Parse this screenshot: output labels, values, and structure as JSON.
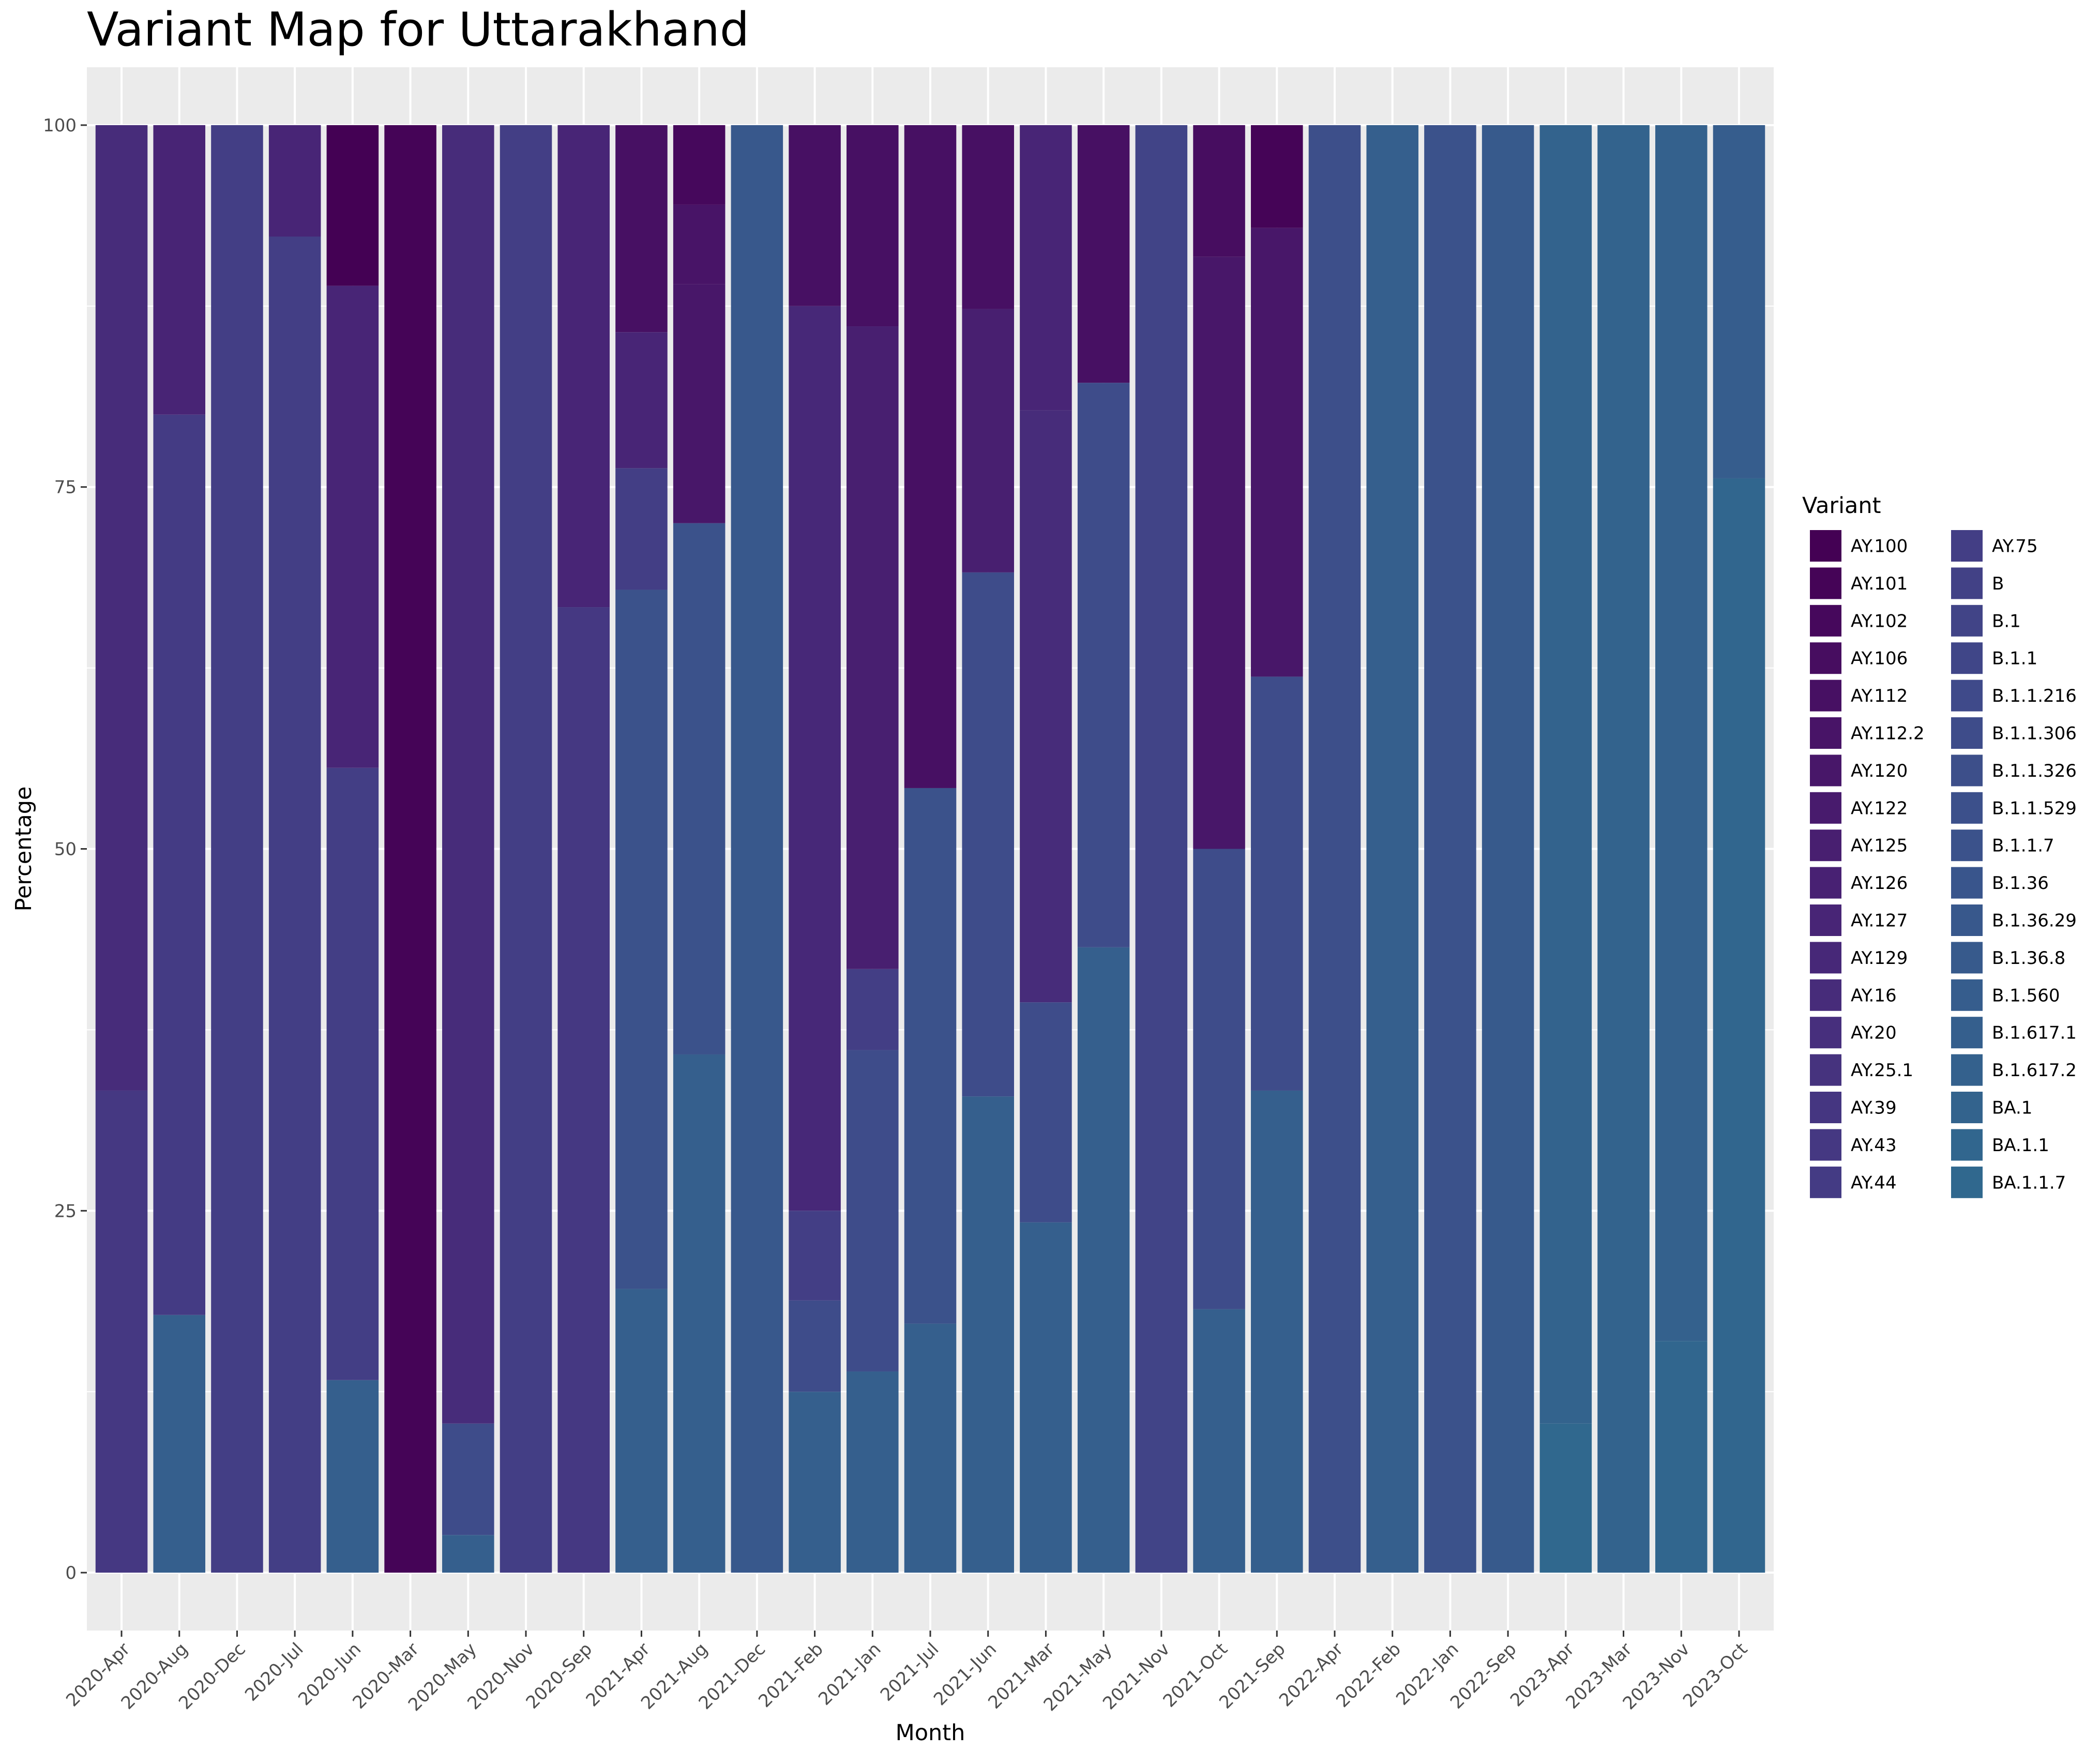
{
  "chart_data": {
    "type": "bar",
    "stacked": true,
    "title": "Variant Map for Uttarakhand",
    "xlabel": "Month",
    "ylabel": "Percentage",
    "ylim": [
      -4,
      104
    ],
    "yticks": [
      0,
      25,
      50,
      75,
      100
    ],
    "grid": true,
    "legend_position": "right",
    "legend_title": "Variant",
    "variants": [
      {
        "name": "AY.100",
        "color": "#440154"
      },
      {
        "name": "AY.101",
        "color": "#450457"
      },
      {
        "name": "AY.102",
        "color": "#46085C"
      },
      {
        "name": "AY.106",
        "color": "#470D60"
      },
      {
        "name": "AY.112",
        "color": "#471063"
      },
      {
        "name": "AY.112.2",
        "color": "#481467"
      },
      {
        "name": "AY.120",
        "color": "#481769"
      },
      {
        "name": "AY.122",
        "color": "#481B6D"
      },
      {
        "name": "AY.125",
        "color": "#481F70"
      },
      {
        "name": "AY.126",
        "color": "#482173"
      },
      {
        "name": "AY.127",
        "color": "#482576"
      },
      {
        "name": "AY.129",
        "color": "#472878"
      },
      {
        "name": "AY.16",
        "color": "#472C7A"
      },
      {
        "name": "AY.20",
        "color": "#472F7D"
      },
      {
        "name": "AY.25.1",
        "color": "#46337E"
      },
      {
        "name": "AY.39",
        "color": "#453681"
      },
      {
        "name": "AY.43",
        "color": "#453882"
      },
      {
        "name": "AY.44",
        "color": "#443B84"
      },
      {
        "name": "AY.75",
        "color": "#433E85"
      },
      {
        "name": "B",
        "color": "#424186"
      },
      {
        "name": "B.1",
        "color": "#414487"
      },
      {
        "name": "B.1.1",
        "color": "#404688"
      },
      {
        "name": "B.1.1.216",
        "color": "#3F4A8A"
      },
      {
        "name": "B.1.1.306",
        "color": "#3E4C8A"
      },
      {
        "name": "B.1.1.326",
        "color": "#3D4F8A"
      },
      {
        "name": "B.1.1.529",
        "color": "#3C508B"
      },
      {
        "name": "B.1.1.7",
        "color": "#3B528B"
      },
      {
        "name": "B.1.36",
        "color": "#39558C"
      },
      {
        "name": "B.1.36.29",
        "color": "#38588C"
      },
      {
        "name": "B.1.36.8",
        "color": "#375A8C"
      },
      {
        "name": "B.1.560",
        "color": "#365D8D"
      },
      {
        "name": "B.1.617.1",
        "color": "#355F8D"
      },
      {
        "name": "B.1.617.2",
        "color": "#34618D"
      },
      {
        "name": "BA.1",
        "color": "#33638D"
      },
      {
        "name": "BA.1.1",
        "color": "#31668E"
      },
      {
        "name": "BA.1.1.7",
        "color": "#30688E"
      }
    ],
    "categories": [
      "2020-Apr",
      "2020-Aug",
      "2020-Dec",
      "2020-Jul",
      "2020-Jun",
      "2020-Mar",
      "2020-May",
      "2020-Nov",
      "2020-Sep",
      "2021-Apr",
      "2021-Aug",
      "2021-Dec",
      "2021-Feb",
      "2021-Jan",
      "2021-Jul",
      "2021-Jun",
      "2021-Mar",
      "2021-May",
      "2021-Nov",
      "2021-Oct",
      "2021-Sep",
      "2022-Apr",
      "2022-Feb",
      "2022-Jan",
      "2022-Sep",
      "2023-Apr",
      "2023-Mar",
      "2023-Nov",
      "2023-Oct"
    ],
    "bars": [
      [
        {
          "from": 0,
          "to": 33.3,
          "color": "#453882"
        },
        {
          "from": 33.3,
          "to": 100,
          "color": "#472C7A"
        }
      ],
      [
        {
          "from": 0,
          "to": 17.8,
          "color": "#355F8D"
        },
        {
          "from": 17.8,
          "to": 80,
          "color": "#443B84"
        },
        {
          "from": 80,
          "to": 100,
          "color": "#482475"
        }
      ],
      [
        {
          "from": 0,
          "to": 100,
          "color": "#433E85"
        }
      ],
      [
        {
          "from": 0,
          "to": 92.3,
          "color": "#433E85"
        },
        {
          "from": 92.3,
          "to": 100,
          "color": "#482576"
        }
      ],
      [
        {
          "from": 0,
          "to": 13.3,
          "color": "#355F8D"
        },
        {
          "from": 13.3,
          "to": 55.6,
          "color": "#433E85"
        },
        {
          "from": 55.6,
          "to": 88.9,
          "color": "#482576"
        },
        {
          "from": 88.9,
          "to": 100,
          "color": "#440154"
        }
      ],
      [
        {
          "from": 0,
          "to": 100,
          "color": "#450457"
        }
      ],
      [
        {
          "from": 0,
          "to": 2.6,
          "color": "#355F8D"
        },
        {
          "from": 2.6,
          "to": 10.3,
          "color": "#3E4C8A"
        },
        {
          "from": 10.3,
          "to": 100,
          "color": "#472C7A"
        }
      ],
      [
        {
          "from": 0,
          "to": 100,
          "color": "#433E85"
        }
      ],
      [
        {
          "from": 0,
          "to": 66.7,
          "color": "#453882"
        },
        {
          "from": 66.7,
          "to": 100,
          "color": "#482576"
        }
      ],
      [
        {
          "from": 0,
          "to": 19.6,
          "color": "#355F8D"
        },
        {
          "from": 19.6,
          "to": 67.9,
          "color": "#3B528B"
        },
        {
          "from": 67.9,
          "to": 76.3,
          "color": "#433E85"
        },
        {
          "from": 76.3,
          "to": 85.7,
          "color": "#482576"
        },
        {
          "from": 85.7,
          "to": 100,
          "color": "#471063"
        }
      ],
      [
        {
          "from": 0,
          "to": 35.8,
          "color": "#355F8D"
        },
        {
          "from": 35.8,
          "to": 72.5,
          "color": "#3B528B"
        },
        {
          "from": 72.5,
          "to": 89,
          "color": "#481769"
        },
        {
          "from": 89,
          "to": 94.5,
          "color": "#481467"
        },
        {
          "from": 94.5,
          "to": 100,
          "color": "#46085C"
        }
      ],
      [
        {
          "from": 0,
          "to": 100,
          "color": "#38588C"
        }
      ],
      [
        {
          "from": 0,
          "to": 12.5,
          "color": "#355F8D"
        },
        {
          "from": 12.5,
          "to": 18.8,
          "color": "#3E4C8A"
        },
        {
          "from": 18.8,
          "to": 25,
          "color": "#433E85"
        },
        {
          "from": 25,
          "to": 87.5,
          "color": "#472878"
        },
        {
          "from": 87.5,
          "to": 100,
          "color": "#471063"
        }
      ],
      [
        {
          "from": 0,
          "to": 13.9,
          "color": "#355F8D"
        },
        {
          "from": 13.9,
          "to": 36.1,
          "color": "#3E4C8A"
        },
        {
          "from": 36.1,
          "to": 41.7,
          "color": "#433E85"
        },
        {
          "from": 41.7,
          "to": 86.1,
          "color": "#481F70"
        },
        {
          "from": 86.1,
          "to": 100,
          "color": "#471063"
        }
      ],
      [
        {
          "from": 0,
          "to": 17.2,
          "color": "#355F8D"
        },
        {
          "from": 17.2,
          "to": 54.2,
          "color": "#3B528B"
        },
        {
          "from": 54.2,
          "to": 100,
          "color": "#471063"
        }
      ],
      [
        {
          "from": 0,
          "to": 32.9,
          "color": "#355F8D"
        },
        {
          "from": 32.9,
          "to": 69.1,
          "color": "#3E4C8A"
        },
        {
          "from": 69.1,
          "to": 87.3,
          "color": "#481F70"
        },
        {
          "from": 87.3,
          "to": 100,
          "color": "#471063"
        }
      ],
      [
        {
          "from": 0,
          "to": 24.2,
          "color": "#355F8D"
        },
        {
          "from": 24.2,
          "to": 39.4,
          "color": "#3E4C8A"
        },
        {
          "from": 39.4,
          "to": 80.3,
          "color": "#472C7A"
        },
        {
          "from": 80.3,
          "to": 100,
          "color": "#482576"
        }
      ],
      [
        {
          "from": 0,
          "to": 43.2,
          "color": "#355F8D"
        },
        {
          "from": 43.2,
          "to": 82.2,
          "color": "#3E4C8A"
        },
        {
          "from": 82.2,
          "to": 100,
          "color": "#471063"
        }
      ],
      [
        {
          "from": 0,
          "to": 100,
          "color": "#414487"
        }
      ],
      [
        {
          "from": 0,
          "to": 18.2,
          "color": "#355F8D"
        },
        {
          "from": 18.2,
          "to": 50,
          "color": "#3E4C8A"
        },
        {
          "from": 50,
          "to": 90.9,
          "color": "#481769"
        },
        {
          "from": 90.9,
          "to": 100,
          "color": "#470D60"
        }
      ],
      [
        {
          "from": 0,
          "to": 33.3,
          "color": "#355F8D"
        },
        {
          "from": 33.3,
          "to": 61.9,
          "color": "#3E4C8A"
        },
        {
          "from": 61.9,
          "to": 92.9,
          "color": "#481769"
        },
        {
          "from": 92.9,
          "to": 100,
          "color": "#450457"
        }
      ],
      [
        {
          "from": 0,
          "to": 100,
          "color": "#3D4F8A"
        }
      ],
      [
        {
          "from": 0,
          "to": 100,
          "color": "#355F8D"
        }
      ],
      [
        {
          "from": 0,
          "to": 100,
          "color": "#3B528B"
        }
      ],
      [
        {
          "from": 0,
          "to": 100,
          "color": "#375A8C"
        }
      ],
      [
        {
          "from": 0,
          "to": 10.3,
          "color": "#30688E"
        },
        {
          "from": 10.3,
          "to": 100,
          "color": "#33638D"
        }
      ],
      [
        {
          "from": 0,
          "to": 100,
          "color": "#33638D"
        }
      ],
      [
        {
          "from": 0,
          "to": 16,
          "color": "#31668E"
        },
        {
          "from": 16,
          "to": 100,
          "color": "#34618D"
        }
      ],
      [
        {
          "from": 0,
          "to": 75.6,
          "color": "#31668E"
        },
        {
          "from": 75.6,
          "to": 100,
          "color": "#365D8D"
        }
      ]
    ]
  }
}
